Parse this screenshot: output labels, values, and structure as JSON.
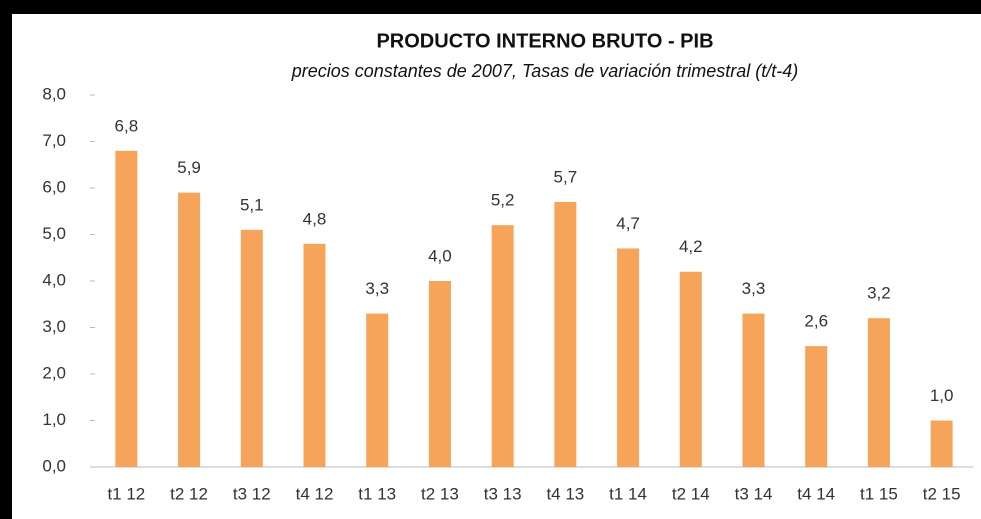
{
  "chart_data": {
    "type": "bar",
    "title": "PRODUCTO INTERNO BRUTO - PIB",
    "subtitle": "precios constantes de 2007, Tasas de variación trimestral (t/t-4)",
    "categories": [
      "t1 12",
      "t2 12",
      "t3 12",
      "t4 12",
      "t1 13",
      "t2 13",
      "t3 13",
      "t4 13",
      "t1 14",
      "t2 14",
      "t3 14",
      "t4 14",
      "t1 15",
      "t2 15"
    ],
    "values": [
      6.8,
      5.9,
      5.1,
      4.8,
      3.3,
      4.0,
      5.2,
      5.7,
      4.7,
      4.2,
      3.3,
      2.6,
      3.2,
      1.0
    ],
    "value_labels": [
      "6,8",
      "5,9",
      "5,1",
      "4,8",
      "3,3",
      "4,0",
      "5,2",
      "5,7",
      "4,7",
      "4,2",
      "3,3",
      "2,6",
      "3,2",
      "1,0"
    ],
    "color": "#f6a45a",
    "ylim": [
      0,
      8
    ],
    "yticks": [
      {
        "value": 0,
        "label": "0,0"
      },
      {
        "value": 1,
        "label": "1,0"
      },
      {
        "value": 2,
        "label": "2,0"
      },
      {
        "value": 3,
        "label": "3,0"
      },
      {
        "value": 4,
        "label": "4,0"
      },
      {
        "value": 5,
        "label": "5,0"
      },
      {
        "value": 6,
        "label": "6,0"
      },
      {
        "value": 7,
        "label": "7,0"
      },
      {
        "value": 8,
        "label": "8,0"
      }
    ],
    "grid": false
  }
}
